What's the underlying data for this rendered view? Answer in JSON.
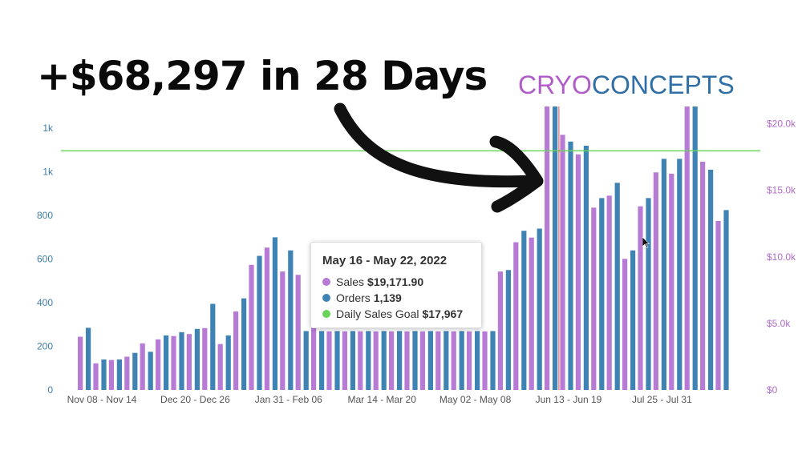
{
  "headline": "+$68,297 in 28 Days",
  "brand": {
    "part1": "CRYO",
    "part2": "CONCEPTS",
    "color1": "#b05cc8",
    "color2": "#2f6fa5"
  },
  "chart_data": {
    "type": "bar",
    "colors": {
      "sales": "#b77bd6",
      "orders": "#3f83b4",
      "goal": "#6bd35a",
      "marker": "#d9534f"
    },
    "left_axis": {
      "ticks": [
        "0",
        "200",
        "400",
        "600",
        "800",
        "1k",
        "1k"
      ],
      "ylim": [
        0,
        1300
      ]
    },
    "right_axis": {
      "ticks": [
        "$0",
        "$5.0k",
        "$10.0k",
        "$15.0k",
        "$20.0k"
      ],
      "ylim": [
        0,
        21300
      ]
    },
    "x_tick_labels": [
      "Nov 08 - Nov 14",
      "Dec 20 - Dec 26",
      "Jan 31 - Feb 06",
      "Mar 14 - Mar 20",
      "May 02 - May 08",
      "Jun 13 - Jun 19",
      "Jul 25 - Jul 31"
    ],
    "goal": {
      "name": "Daily Sales Goal",
      "value": 17967
    },
    "series": [
      {
        "name": "Sales",
        "values": [
          4000,
          2000,
          2250,
          2500,
          3500,
          3800,
          4050,
          4200,
          4650,
          3450,
          5900,
          9400,
          10700,
          8900,
          8650,
          6700,
          4400,
          4400,
          4400,
          4400,
          4400,
          4400,
          4400,
          4400,
          4400,
          4400,
          4400,
          8900,
          11100,
          11450,
          21500,
          19171.9,
          17700,
          13700,
          14600,
          9850,
          13800,
          16350,
          16250,
          21500,
          17150,
          12700
        ]
      },
      {
        "name": "Orders",
        "values": [
          285,
          140,
          140,
          170,
          175,
          250,
          265,
          280,
          395,
          250,
          420,
          615,
          700,
          640,
          270,
          270,
          270,
          270,
          270,
          270,
          270,
          270,
          270,
          270,
          270,
          270,
          270,
          550,
          730,
          740,
          1300,
          1139,
          1120,
          880,
          950,
          640,
          880,
          1060,
          1060,
          1300,
          1010,
          825
        ]
      }
    ]
  },
  "tooltip": {
    "title": "May 16 - May 22, 2022",
    "rows": [
      {
        "label": "Sales",
        "value": "$19,171.90",
        "color": "#b77bd6"
      },
      {
        "label": "Orders",
        "value": "1,139",
        "color": "#3f83b4"
      },
      {
        "label": "Daily Sales Goal",
        "value": "$17,967",
        "color": "#6bd35a"
      }
    ]
  }
}
